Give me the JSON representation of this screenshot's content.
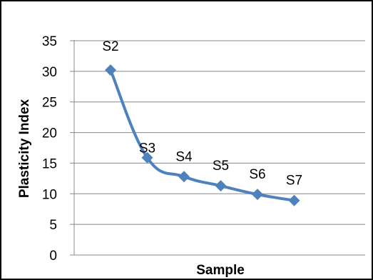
{
  "chart_data": {
    "type": "line",
    "title": "",
    "xlabel": "Sample",
    "ylabel": "Plasticity Index",
    "ylim": [
      0,
      35
    ],
    "yticks": [
      0,
      5,
      10,
      15,
      20,
      25,
      30,
      35
    ],
    "grid": true,
    "smooth": true,
    "legend": "none",
    "series": [
      {
        "color": "#4F81BD",
        "marker": "diamond",
        "points": [
          {
            "label": "S2",
            "value": 30.2
          },
          {
            "label": "S3",
            "value": 15.9
          },
          {
            "label": "S4",
            "value": 12.8
          },
          {
            "label": "S5",
            "value": 11.3
          },
          {
            "label": "S6",
            "value": 9.9
          },
          {
            "label": "S7",
            "value": 8.9
          }
        ]
      }
    ]
  }
}
